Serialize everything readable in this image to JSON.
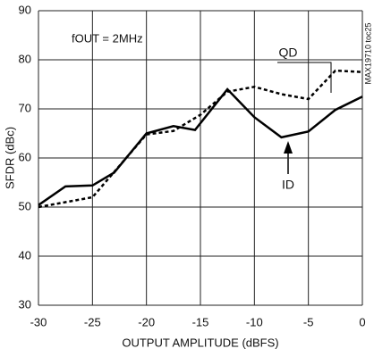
{
  "chart_data": {
    "type": "line",
    "annotation": "fOUT = 2MHz",
    "side_note": "MAX19710 toc25",
    "x_label": "OUTPUT AMPLITUDE (dBFS)",
    "y_label": "SFDR (dBc)",
    "xlim": [
      -30,
      0
    ],
    "xticks": [
      -30,
      -25,
      -20,
      -15,
      -10,
      -5,
      0
    ],
    "ylim": [
      30,
      90
    ],
    "yticks": [
      30,
      40,
      50,
      60,
      70,
      80,
      90
    ],
    "grid": true,
    "series": [
      {
        "name": "ID",
        "color": "#000000",
        "dashed": false,
        "x": [
          -30,
          -27.5,
          -25,
          -23,
          -20,
          -17.5,
          -15.5,
          -12.5,
          -10,
          -7.5,
          -5,
          -2.5,
          0
        ],
        "values": [
          50.4,
          54.2,
          54.4,
          57,
          65,
          66.5,
          65.7,
          74,
          68.3,
          64.2,
          65.4,
          69.8,
          72.5
        ]
      },
      {
        "name": "QD",
        "color": "#000000",
        "dashed": true,
        "x": [
          -30,
          -25,
          -20,
          -17.5,
          -15,
          -12.5,
          -10,
          -7.5,
          -5,
          -2.5,
          0
        ],
        "values": [
          50,
          52,
          64.8,
          65.5,
          68.8,
          73.5,
          74.5,
          73,
          72,
          77.8,
          77.5
        ]
      }
    ]
  }
}
